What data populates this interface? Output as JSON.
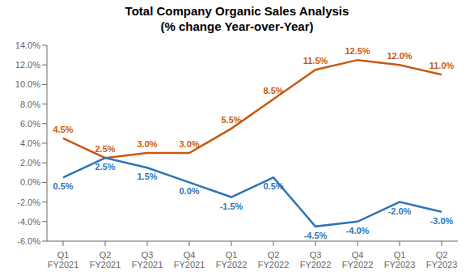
{
  "chart_data": {
    "type": "line",
    "title": "Total Company Organic Sales Analysis",
    "subtitle": "(% change Year-over-Year)",
    "categories": [
      "Q1\nFY2021",
      "Q2\nFY2021",
      "Q3\nFY2021",
      "Q4\nFY2021",
      "Q1\nFY2022",
      "Q2\nFY2022",
      "Q3\nFY2022",
      "Q4\nFY2022",
      "Q1\nFY2023",
      "Q2\nFY2023"
    ],
    "series": [
      {
        "color": "#C55A11",
        "values": [
          4.5,
          2.5,
          3.0,
          3.0,
          5.5,
          8.5,
          11.5,
          12.5,
          12.0,
          11.0
        ],
        "value_labels": [
          "4.5%",
          "2.5%",
          "3.0%",
          "3.0%",
          "5.5%",
          "8.5%",
          "11.5%",
          "12.5%",
          "12.0%",
          "11.0%"
        ]
      },
      {
        "color": "#2E75B6",
        "values": [
          0.5,
          2.5,
          1.5,
          0.0,
          -1.5,
          0.5,
          -4.5,
          -4.0,
          -2.0,
          -3.0
        ],
        "value_labels": [
          "0.5%",
          "2.5%",
          "1.5%",
          "0.0%",
          "-1.5%",
          "0.5%",
          "-4.5%",
          "-4.0%",
          "-2.0%",
          "-3.0%"
        ]
      }
    ],
    "ylim": [
      -6.0,
      14.0
    ],
    "yticks": [
      {
        "value": -6.0,
        "label": "-6.0%"
      },
      {
        "value": -4.0,
        "label": "-4.0%"
      },
      {
        "value": -2.0,
        "label": "-2.0%"
      },
      {
        "value": 0.0,
        "label": "0.0%"
      },
      {
        "value": 2.0,
        "label": "2.0%"
      },
      {
        "value": 4.0,
        "label": "4.0%"
      },
      {
        "value": 6.0,
        "label": "6.0%"
      },
      {
        "value": 8.0,
        "label": "8.0%"
      },
      {
        "value": 10.0,
        "label": "10.0%"
      },
      {
        "value": 12.0,
        "label": "12.0%"
      },
      {
        "value": 14.0,
        "label": "14.0%"
      }
    ],
    "grid": false,
    "data_labels": true
  }
}
